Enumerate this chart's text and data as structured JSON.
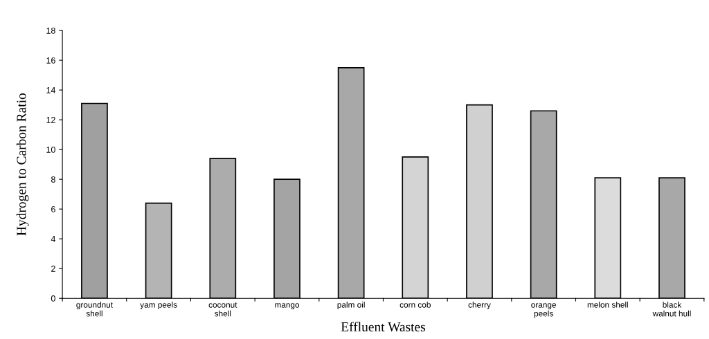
{
  "chart_data": {
    "type": "bar",
    "xlabel": "Effluent Wastes",
    "ylabel": "Hydrogen to Carbon Ratio",
    "categories": [
      "groundnut\nshell",
      "yam peels",
      "coconut\nshell",
      "mango",
      "palm oil",
      "corn cob",
      "cherry",
      "orange\npeels",
      "melon shell",
      "black\nwalnut hull"
    ],
    "values": [
      13.1,
      6.4,
      9.4,
      8.0,
      15.5,
      9.5,
      13.0,
      12.6,
      8.1,
      8.1
    ],
    "colors": [
      "#a0a0a0",
      "#b4b4b4",
      "#acacac",
      "#a4a4a4",
      "#a8a8a8",
      "#d4d4d4",
      "#d0d0d0",
      "#a8a8a8",
      "#dcdcdc",
      "#a8a8a8"
    ],
    "ylim": [
      0,
      18
    ],
    "yticks": [
      0,
      2,
      4,
      6,
      8,
      10,
      12,
      14,
      16,
      18
    ],
    "grid": false,
    "legend": false
  }
}
